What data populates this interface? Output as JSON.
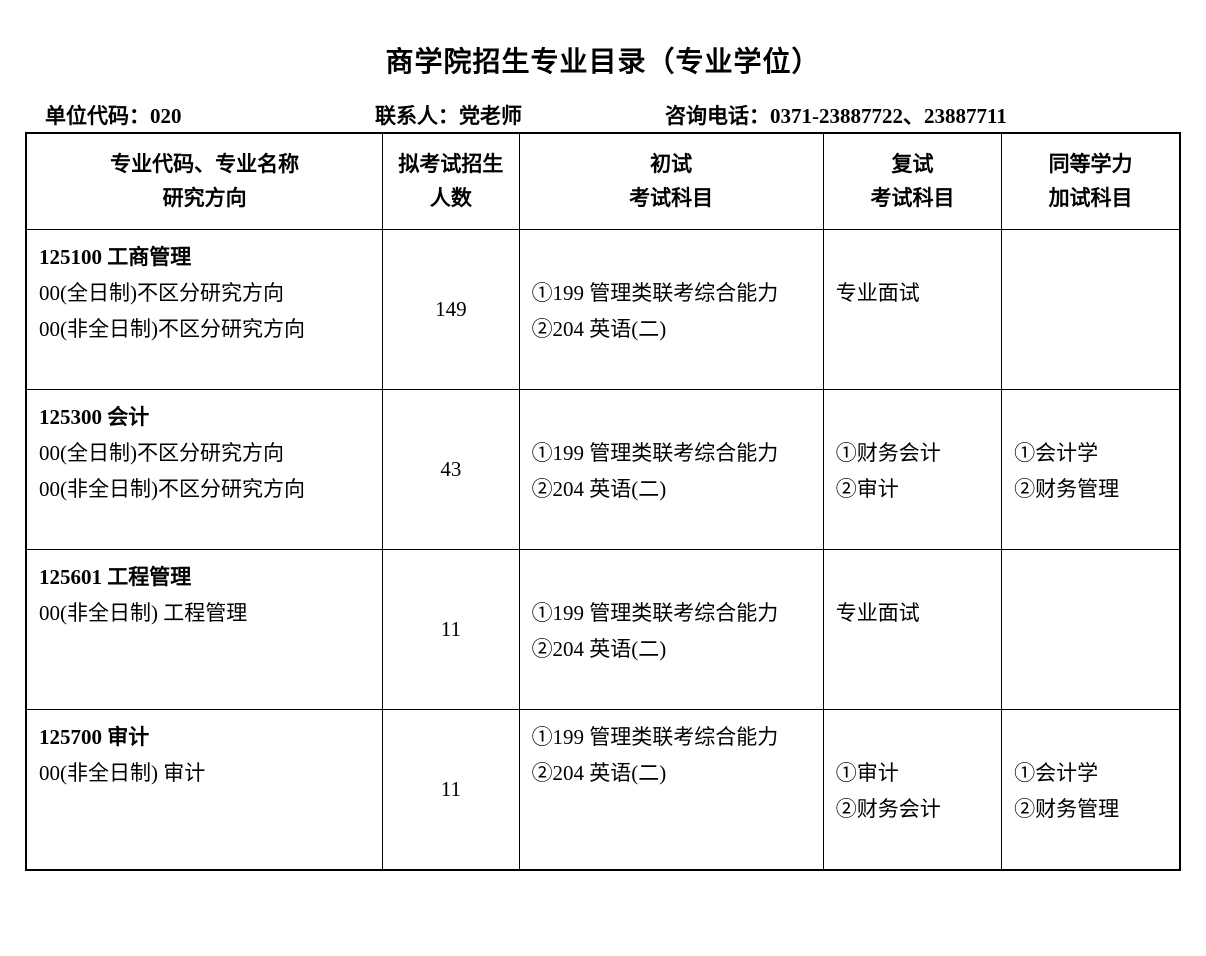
{
  "title": "商学院招生专业目录（专业学位）",
  "header": {
    "unit_label": "单位代码：",
    "unit_code": "020",
    "contact_label": "联系人：",
    "contact_name": "党老师",
    "phone_label": "咨询电话：",
    "phone_value": "0371-23887722、23887711"
  },
  "columns": {
    "major": "专业代码、专业名称\n研究方向",
    "major_line1": "专业代码、专业名称",
    "major_line2": "研究方向",
    "num": "拟考试招生",
    "num_line2": "人数",
    "exam1": "初试",
    "exam1_line2": "考试科目",
    "exam2": "复试",
    "exam2_line2": "考试科目",
    "exam3": "同等学力",
    "exam3_line2": "加试科目"
  },
  "rows": [
    {
      "major_code": "125100 工商管理",
      "direction1": "00(全日制)不区分研究方向",
      "direction2": "00(非全日制)不区分研究方向",
      "num": "149",
      "exam1_line1": "①199 管理类联考综合能力",
      "exam1_line2": "②204 英语(二)",
      "exam2_line1": "专业面试",
      "exam2_line2": "",
      "exam3_line1": "",
      "exam3_line2": ""
    },
    {
      "major_code": "125300 会计",
      "direction1": "00(全日制)不区分研究方向",
      "direction2": "00(非全日制)不区分研究方向",
      "num": "43",
      "exam1_line1": "①199 管理类联考综合能力",
      "exam1_line2": "②204 英语(二)",
      "exam2_line1": "①财务会计",
      "exam2_line2": "②审计",
      "exam3_line1": "①会计学",
      "exam3_line2": "②财务管理"
    },
    {
      "major_code": "125601  工程管理",
      "direction1": "00(非全日制)  工程管理",
      "direction2": "",
      "num": "11",
      "exam1_line1": "①199 管理类联考综合能力",
      "exam1_line2": "②204 英语(二)",
      "exam2_line1": "专业面试",
      "exam2_line2": "",
      "exam3_line1": "",
      "exam3_line2": ""
    },
    {
      "major_code": "125700 审计",
      "direction1": "00(非全日制)  审计",
      "direction2": "",
      "num": "11",
      "exam1_line1": "①199 管理类联考综合能力",
      "exam1_line2": "②204 英语(二)",
      "exam2_line1": "①审计",
      "exam2_line2": "②财务会计",
      "exam3_line1": "①会计学",
      "exam3_line2": "②财务管理"
    }
  ],
  "colors": {
    "background": "#ffffff",
    "text": "#000000",
    "border": "#000000"
  }
}
